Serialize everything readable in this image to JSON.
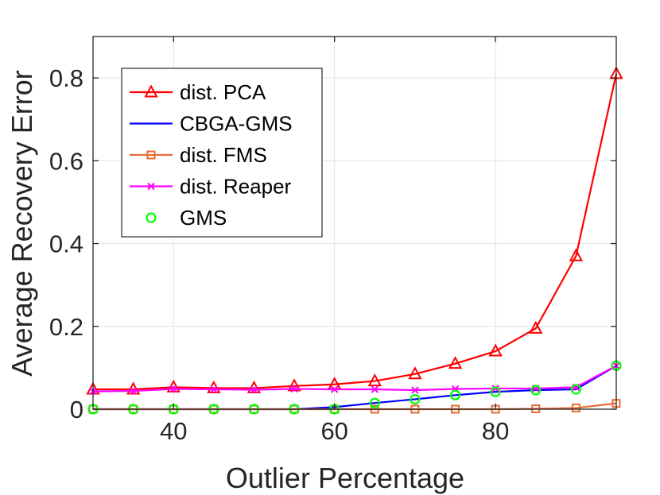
{
  "chart_data": {
    "type": "line",
    "xlabel": "Outlier Percentage",
    "ylabel": "Average Recovery Error",
    "xlim": [
      30,
      95
    ],
    "ylim": [
      0,
      0.9
    ],
    "xticks": [
      40,
      60,
      80
    ],
    "yticks": [
      0,
      0.2,
      0.4,
      0.6,
      0.8
    ],
    "ytick_labels": [
      "0",
      "0.2",
      "0.4",
      "0.6",
      "0.8"
    ],
    "grid": true,
    "legend_position": "top-left",
    "x": [
      30,
      35,
      40,
      45,
      50,
      55,
      60,
      65,
      70,
      75,
      80,
      85,
      90,
      95
    ],
    "series": [
      {
        "name": "dist. PCA",
        "color": "#ff0000",
        "marker": "triangle",
        "line": true,
        "values": [
          0.048,
          0.048,
          0.053,
          0.051,
          0.051,
          0.056,
          0.06,
          0.068,
          0.085,
          0.11,
          0.14,
          0.195,
          0.37,
          0.81
        ]
      },
      {
        "name": "CBGA-GMS",
        "color": "#0000ff",
        "marker": "none",
        "line": true,
        "values": [
          0.0,
          0.0,
          0.0,
          0.0,
          0.0,
          0.0,
          0.005,
          0.015,
          0.024,
          0.034,
          0.042,
          0.046,
          0.048,
          0.105
        ]
      },
      {
        "name": "dist. FMS",
        "color": "#e56b35",
        "marker": "square",
        "line": true,
        "values": [
          0.0,
          0.0,
          0.0,
          0.0,
          0.0,
          0.0,
          0.0,
          0.0,
          0.0,
          0.0,
          0.0,
          0.001,
          0.003,
          0.014
        ]
      },
      {
        "name": "dist. Reaper",
        "color": "#ff00ff",
        "marker": "x",
        "line": true,
        "values": [
          0.043,
          0.044,
          0.049,
          0.048,
          0.047,
          0.049,
          0.048,
          0.048,
          0.046,
          0.049,
          0.05,
          0.05,
          0.053,
          0.105
        ]
      },
      {
        "name": "GMS",
        "color": "#00ff00",
        "marker": "circle",
        "line": false,
        "values": [
          0.0,
          0.0,
          0.0,
          0.0,
          0.0,
          0.0,
          0.0,
          0.015,
          0.024,
          0.034,
          0.042,
          0.046,
          0.048,
          0.105
        ]
      }
    ]
  }
}
